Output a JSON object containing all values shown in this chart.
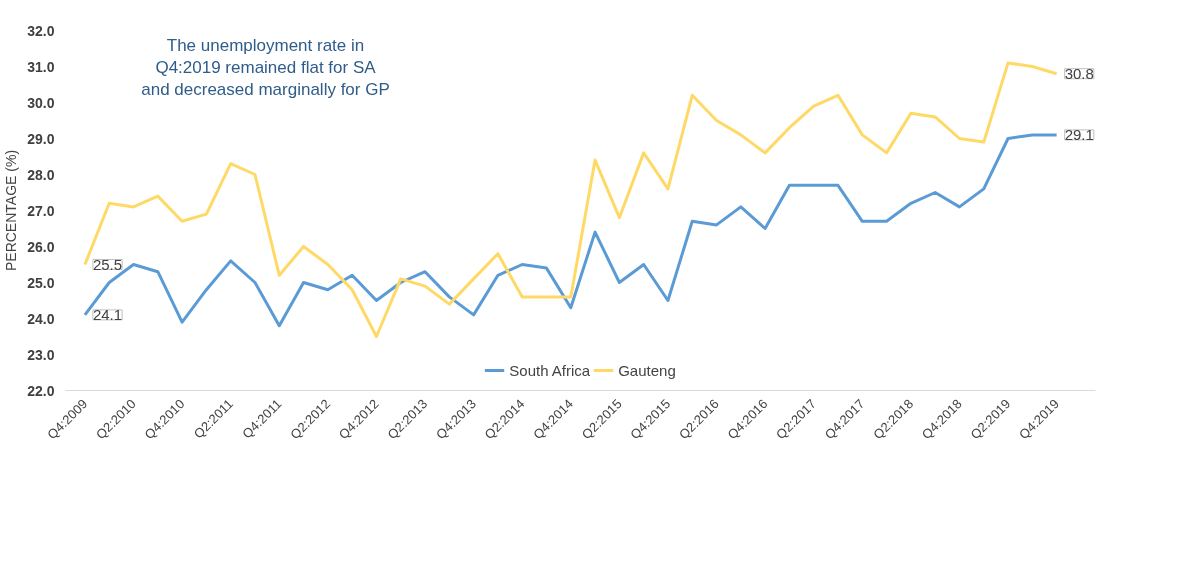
{
  "chart_data": {
    "type": "line",
    "ylabel": "PERCENTAGE (%)",
    "categories": [
      "Q4:2009",
      null,
      "Q2:2010",
      null,
      "Q4:2010",
      null,
      "Q2:2011",
      null,
      "Q4:2011",
      null,
      "Q2:2012",
      null,
      "Q4:2012",
      null,
      "Q2:2013",
      null,
      "Q4:2013",
      null,
      "Q2:2014",
      null,
      "Q4:2014",
      null,
      "Q2:2015",
      null,
      "Q4:2015",
      null,
      "Q2:2016",
      null,
      "Q4:2016",
      null,
      "Q2:2017",
      null,
      "Q4:2017",
      null,
      "Q2:2018",
      null,
      "Q4:2018",
      null,
      "Q2:2019",
      null,
      "Q4:2019"
    ],
    "series": [
      {
        "name": "South Africa",
        "color": "#5b9bd5",
        "values": [
          24.1,
          25.0,
          25.5,
          25.3,
          23.9,
          24.8,
          25.6,
          25.0,
          23.8,
          25.0,
          24.8,
          25.2,
          24.5,
          25.0,
          25.3,
          24.6,
          24.1,
          25.2,
          25.5,
          25.4,
          24.3,
          26.4,
          25.0,
          25.5,
          24.5,
          26.7,
          26.6,
          27.1,
          26.5,
          27.7,
          27.7,
          27.7,
          26.7,
          26.7,
          27.2,
          27.5,
          27.1,
          27.6,
          29.0,
          29.1,
          29.1
        ]
      },
      {
        "name": "Gauteng",
        "color": "#ffd966",
        "values": [
          25.5,
          27.2,
          27.1,
          27.4,
          26.7,
          26.9,
          28.3,
          28.0,
          25.2,
          26.0,
          25.5,
          24.8,
          23.5,
          25.1,
          24.9,
          24.4,
          25.1,
          25.8,
          24.6,
          24.6,
          24.6,
          28.4,
          26.8,
          28.6,
          27.6,
          30.2,
          29.5,
          29.1,
          28.6,
          29.3,
          29.9,
          30.2,
          29.1,
          28.6,
          29.7,
          29.6,
          29.0,
          28.9,
          31.1,
          31.0,
          30.8
        ]
      }
    ],
    "ylim": [
      22,
      32
    ],
    "yticks": [
      {
        "value": 22,
        "label": "22.0"
      },
      {
        "value": 23,
        "label": "23.0"
      },
      {
        "value": 24,
        "label": "24.0"
      },
      {
        "value": 25,
        "label": "25.0"
      },
      {
        "value": 26,
        "label": "26.0"
      },
      {
        "value": 27,
        "label": "27.0"
      },
      {
        "value": 28,
        "label": "28.0"
      },
      {
        "value": 29,
        "label": "29.0"
      },
      {
        "value": 30,
        "label": "30.0"
      },
      {
        "value": 31,
        "label": "31.0"
      },
      {
        "value": 32,
        "label": "32.0"
      }
    ],
    "grid": false,
    "legend": "bottom",
    "marker": "none",
    "line_style": "solid",
    "annotations": [
      "The unemployment rate in\nQ4:2019 remained flat for SA\nand decreased marginally for GP",
      {
        "text": "25.5",
        "x": "Q4:2009",
        "y": 25.5
      },
      {
        "text": "24.1",
        "x": "Q4:2009",
        "y": 24.1
      },
      {
        "text": "30.8",
        "x": "Q4:2019",
        "y": 30.8
      },
      {
        "text": "29.1",
        "x": "Q4:2019",
        "y": 29.1
      }
    ]
  }
}
